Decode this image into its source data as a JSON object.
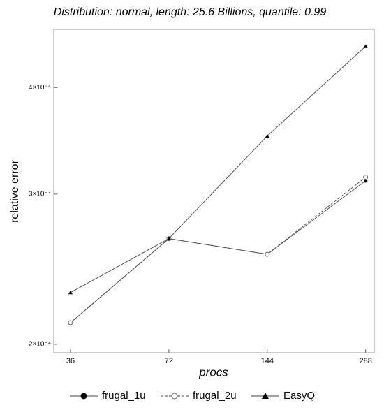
{
  "chart_data": {
    "type": "line",
    "title": "Distribution: normal, length: 25.6 Billions, quantile: 0.99",
    "x_label": "procs",
    "y_label": "relative error",
    "x": [
      36,
      72,
      144,
      288
    ],
    "series": [
      {
        "name": "frugal_1u",
        "color": "#444444",
        "marker": "filled-circle",
        "line_style": "solid",
        "values": [
          0.000212,
          0.000266,
          0.000255,
          0.000311
        ]
      },
      {
        "name": "frugal_2u",
        "color": "#444444",
        "marker": "open-circle",
        "line_style": "dashed",
        "values": [
          0.000212,
          0.000266,
          0.000255,
          0.000314
        ]
      },
      {
        "name": "EasyQ",
        "color": "#444444",
        "marker": "triangle",
        "line_style": "solid",
        "values": [
          0.00023,
          0.000266,
          0.000351,
          0.000447
        ]
      }
    ],
    "x_scale": "log",
    "y_scale": "log",
    "xlim": [
      32,
      306
    ],
    "xticks": [
      36,
      72,
      144,
      288
    ],
    "ylim": [
      0.0001955,
      0.000468
    ],
    "yticks": [
      {
        "value": 0.0002,
        "label": "2×10⁻⁴"
      },
      {
        "value": 0.0003,
        "label": "3×10⁻⁴"
      },
      {
        "value": 0.0004,
        "label": "4×10⁻⁴"
      }
    ],
    "grid": false,
    "legend": "bottom"
  }
}
